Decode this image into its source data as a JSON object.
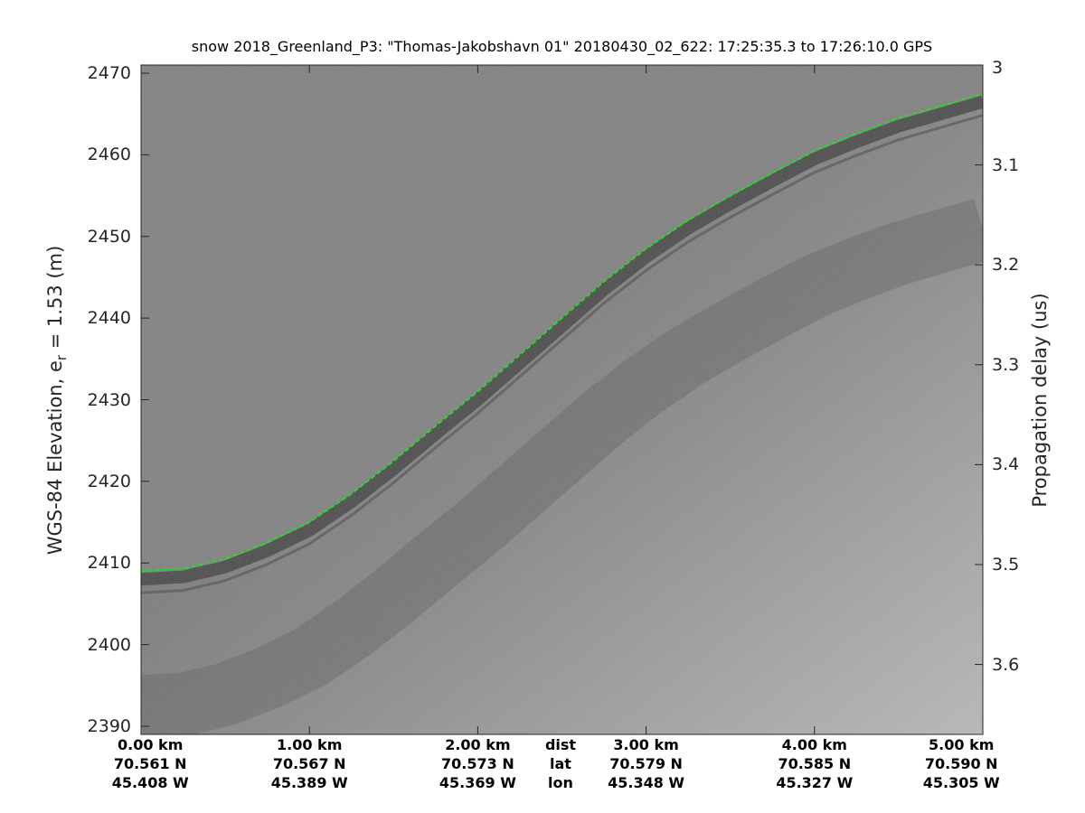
{
  "chart_data": {
    "type": "heatmap",
    "title": "snow 2018_Greenland_P3: \"Thomas-Jakobshavn 01\"  20180430_02_622: 17:25:35.3 to 17:26:10.0 GPS",
    "ylabel": "WGS-84 Elevation, e",
    "ylabel_sub": "r",
    "ylabel_rest": " = 1.53 (m)",
    "y2label": "Propagation delay (us)",
    "ylim": [
      2389,
      2471
    ],
    "y_ticks": [
      "2390",
      "2400",
      "2410",
      "2420",
      "2430",
      "2440",
      "2450",
      "2460",
      "2470"
    ],
    "y_tick_values": [
      2390,
      2400,
      2410,
      2420,
      2430,
      2440,
      2450,
      2460,
      2470
    ],
    "y2lim": [
      3.67,
      3.0
    ],
    "y2_ticks": [
      "3",
      "3.1",
      "3.2",
      "3.3",
      "3.4",
      "3.5",
      "3.6"
    ],
    "y2_tick_values": [
      3.0,
      3.1,
      3.2,
      3.3,
      3.4,
      3.5,
      3.6
    ],
    "xlim": [
      0,
      5
    ],
    "x_row_labels": [
      "dist",
      "lat",
      "lon"
    ],
    "x_ticks": [
      {
        "dist": "0.00 km",
        "lat": "70.561 N",
        "lon": "45.408 W",
        "value": 0
      },
      {
        "dist": "1.00 km",
        "lat": "70.567 N",
        "lon": "45.389 W",
        "value": 1
      },
      {
        "dist": "2.00 km",
        "lat": "70.573 N",
        "lon": "45.369 W",
        "value": 2
      },
      {
        "dist": "3.00 km",
        "lat": "70.579 N",
        "lon": "45.348 W",
        "value": 3
      },
      {
        "dist": "4.00 km",
        "lat": "70.585 N",
        "lon": "45.327 W",
        "value": 4
      },
      {
        "dist": "5.00 km",
        "lat": "70.590 N",
        "lon": "45.305 W",
        "value": 5
      }
    ],
    "surface": {
      "x": [
        0,
        0.25,
        0.5,
        0.75,
        1.0,
        1.25,
        1.5,
        1.75,
        2.0,
        2.25,
        2.5,
        2.75,
        3.0,
        3.25,
        3.5,
        3.75,
        4.0,
        4.25,
        4.5,
        4.75,
        5.0
      ],
      "y": [
        2409,
        2409.3,
        2410.5,
        2412.5,
        2415,
        2418.5,
        2422.5,
        2426.8,
        2431,
        2435.5,
        2440,
        2444.5,
        2448.5,
        2452,
        2455,
        2457.8,
        2460.5,
        2462.6,
        2464.5,
        2466,
        2467.5
      ]
    },
    "colors": {
      "surface_line": "#22dd22",
      "background": "#7a7a7a",
      "axis": "#262626"
    },
    "colormap": "gray"
  }
}
